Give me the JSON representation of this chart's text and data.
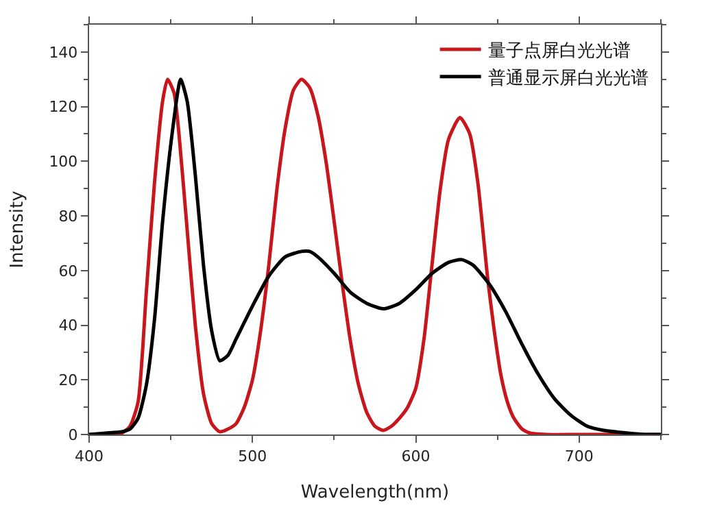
{
  "chart_data": {
    "type": "line",
    "xlabel": "Wavelength(nm)",
    "ylabel": "Intensity",
    "xlim": [
      400,
      750
    ],
    "xticks": [
      400,
      500,
      600,
      700
    ],
    "ylim": [
      0,
      150
    ],
    "yticks": [
      0,
      20,
      40,
      60,
      80,
      100,
      120,
      140
    ],
    "legend": "top right",
    "marker": "none",
    "line_style": "solid",
    "series": [
      {
        "name": "量子点屏白光光谱",
        "color": "#c8161d",
        "x": [
          400,
          415,
          420,
          425,
          430,
          435,
          440,
          445,
          448,
          452,
          455,
          460,
          465,
          470,
          475,
          480,
          485,
          490,
          495,
          500,
          505,
          510,
          515,
          520,
          525,
          530,
          535,
          540,
          545,
          550,
          555,
          560,
          565,
          570,
          575,
          580,
          585,
          590,
          595,
          600,
          605,
          609,
          615,
          620,
          627,
          633,
          638,
          644,
          648,
          652,
          656,
          660,
          665,
          670,
          680,
          700,
          750
        ],
        "values": [
          0,
          0,
          0.5,
          3,
          12,
          52,
          92,
          122,
          130,
          125,
          110,
          75,
          40,
          15,
          4,
          1,
          2,
          4,
          10,
          20,
          38,
          62,
          90,
          112,
          126,
          130,
          127,
          117,
          100,
          78,
          55,
          34,
          18,
          8,
          3,
          1.5,
          3,
          6,
          10,
          17,
          35,
          57,
          90,
          108,
          116,
          110,
          92,
          57,
          38,
          22,
          12,
          6,
          2,
          0.5,
          0,
          0,
          0
        ]
      },
      {
        "name": "普通显示屏白光光谱",
        "color": "#000000",
        "x": [
          400,
          410,
          420,
          425,
          430,
          435,
          440,
          445,
          451,
          456,
          460,
          465,
          470,
          475,
          480,
          485,
          490,
          500,
          510,
          520,
          530,
          535,
          540,
          550,
          560,
          570,
          580,
          590,
          600,
          610,
          620,
          628,
          635,
          645,
          655,
          665,
          675,
          685,
          695,
          705,
          715,
          730,
          740,
          750
        ],
        "values": [
          0,
          0.5,
          1,
          2,
          6,
          18,
          42,
          78,
          111,
          130,
          122,
          95,
          62,
          38,
          27,
          29,
          35,
          47,
          58,
          65,
          67,
          67,
          65,
          59,
          52,
          48,
          46,
          48,
          53,
          59,
          63,
          64,
          62,
          55,
          45,
          33,
          22,
          13,
          7,
          3,
          1.5,
          0.5,
          0,
          0
        ]
      }
    ]
  }
}
